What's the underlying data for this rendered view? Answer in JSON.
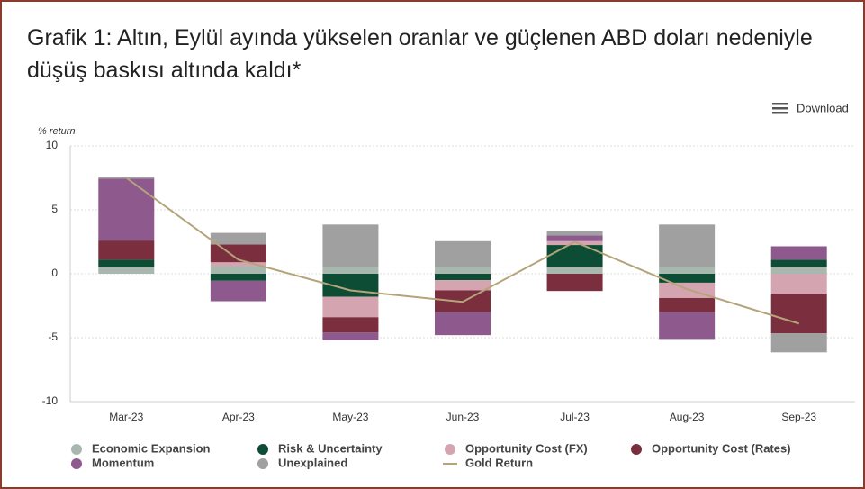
{
  "chart_data": {
    "type": "bar",
    "title": "Grafik 1: Altın, Eylül ayında yükselen oranlar ve güçlenen ABD doları nedeniyle düşüş baskısı altında kaldı*",
    "menu": "Download",
    "y_axis_label": "% return",
    "stacked": true,
    "categories": [
      "Mar-23",
      "Apr-23",
      "May-23",
      "Jun-23",
      "Jul-23",
      "Aug-23",
      "Sep-23"
    ],
    "series": [
      {
        "name": "Economic Expansion",
        "color": "#a9b8ae",
        "values": [
          0.55,
          0.6,
          0.55,
          0.55,
          0.55,
          0.55,
          0.55
        ]
      },
      {
        "name": "Risk & Uncertainty",
        "color": "#0d4d35",
        "values": [
          0.55,
          -0.55,
          -1.8,
          -0.5,
          1.7,
          -0.7,
          0.55
        ]
      },
      {
        "name": "Opportunity Cost (FX)",
        "color": "#d4a5b0",
        "values": [
          null,
          0.3,
          -1.6,
          -0.8,
          0.3,
          -1.2,
          -1.55
        ]
      },
      {
        "name": "Opportunity Cost (Rates)",
        "color": "#7a2e3e",
        "values": [
          1.5,
          1.4,
          -1.2,
          -1.7,
          -1.35,
          -1.1,
          -3.1
        ]
      },
      {
        "name": "Momentum",
        "color": "#8e5a8e",
        "values": [
          4.85,
          -1.6,
          -0.6,
          -1.8,
          0.45,
          -2.1,
          1.05
        ]
      },
      {
        "name": "Unexplained",
        "color": "#a0a0a0",
        "values": [
          0.15,
          0.9,
          3.3,
          2.0,
          0.35,
          3.3,
          -1.5
        ]
      }
    ],
    "line_series": {
      "name": "Gold Return",
      "color": "#b5a47a",
      "values": [
        7.5,
        1.1,
        -1.3,
        -2.2,
        2.5,
        -1.2,
        -3.9
      ]
    },
    "ylim": [
      -10,
      10
    ],
    "yticks": [
      -10,
      -5,
      0,
      5,
      10
    ],
    "grid": true
  }
}
